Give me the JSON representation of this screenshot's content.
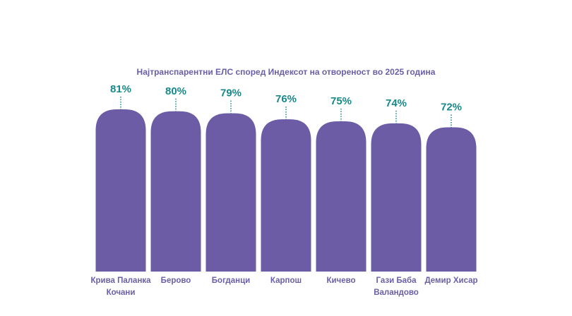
{
  "chart_data": {
    "type": "bar",
    "title": "Најтранспарентни ЕЛС според Индексот на отвореност во 2025 година",
    "categories": [
      "Крива Паланка Кочани",
      "Берово",
      "Богданци",
      "Карпош",
      "Кичево",
      "Гази Баба Валандово",
      "Демир Хисар"
    ],
    "values": [
      81,
      80,
      79,
      76,
      75,
      74,
      72
    ],
    "value_labels": [
      "81%",
      "80%",
      "79%",
      "76%",
      "75%",
      "74%",
      "72%"
    ],
    "color": "#6c5ca6"
  }
}
